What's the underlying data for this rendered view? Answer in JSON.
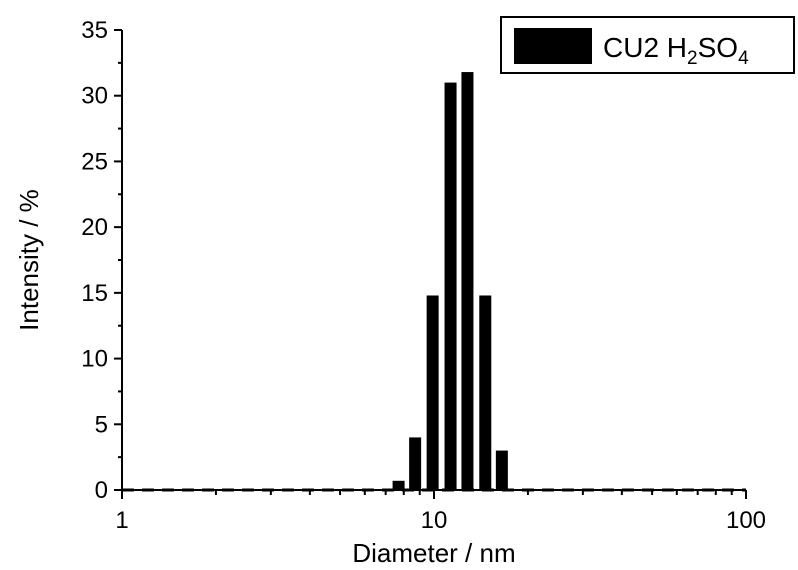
{
  "chart_data": {
    "type": "bar",
    "xscale": "log",
    "xlabel": "Diameter / nm",
    "ylabel": "Intensity / %",
    "xlim": [
      1,
      100
    ],
    "ylim": [
      0,
      35
    ],
    "x_ticks": [
      1,
      10,
      100
    ],
    "y_ticks": [
      0,
      5,
      10,
      15,
      20,
      25,
      30,
      35
    ],
    "series": [
      {
        "name": "CU2 H2SO4",
        "color": "#000000",
        "x": [
          7.7,
          8.7,
          9.9,
          11.3,
          12.8,
          14.6,
          16.5
        ],
        "values": [
          0.7,
          4.0,
          14.8,
          31.0,
          31.8,
          14.8,
          3.0
        ]
      }
    ],
    "legend": {
      "position": "top-right",
      "label_prefix": "CU2 H",
      "label_sub1": "2",
      "label_mid": "SO",
      "label_sub2": "4"
    },
    "zero_baseline": "dashed",
    "grid": false
  }
}
